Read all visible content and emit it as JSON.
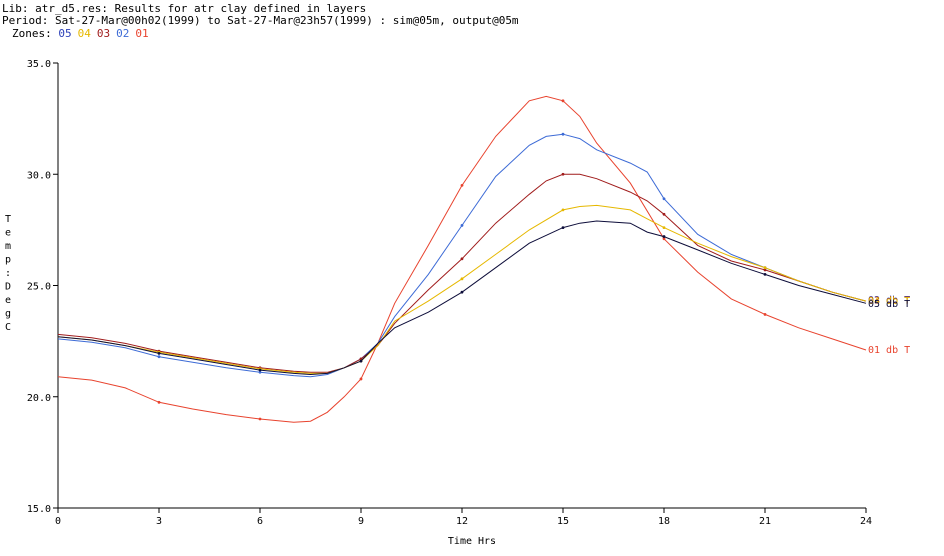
{
  "header": {
    "lib_line": "Lib: atr_d5.res: Results for atr clay defined in layers",
    "period_line": "Period: Sat-27-Mar@00h02(1999) to Sat-27-Mar@23h57(1999) : sim@05m, output@05m",
    "zones_label": "Zones:",
    "zones": [
      {
        "id": "05",
        "color": "#2b3fb8"
      },
      {
        "id": "04",
        "color": "#e6b800"
      },
      {
        "id": "03",
        "color": "#a01c1c"
      },
      {
        "id": "02",
        "color": "#3d6bd6"
      },
      {
        "id": "01",
        "color": "#e8432e"
      }
    ]
  },
  "chart_data": {
    "type": "line",
    "xlabel": "Time Hrs",
    "ylabel": "Temp: DegC",
    "xlim": [
      0,
      24
    ],
    "ylim": [
      15,
      35
    ],
    "x_ticks": [
      "0",
      "3",
      "6",
      "9",
      "12",
      "15",
      "18",
      "21",
      "24"
    ],
    "y_ticks": [
      "15.0",
      "20.0",
      "25.0",
      "30.0",
      "35.0"
    ],
    "grid": false,
    "series": [
      {
        "name": "01 db T",
        "color": "#e8432e",
        "x": [
          0,
          1,
          2,
          3,
          4,
          5,
          6,
          7,
          7.5,
          8,
          8.5,
          9,
          9.5,
          10,
          11,
          12,
          13,
          14,
          14.5,
          15,
          15.5,
          16,
          17,
          18,
          19,
          20,
          21,
          22,
          23,
          24
        ],
        "y": [
          20.9,
          20.75,
          20.4,
          19.75,
          19.45,
          19.2,
          19.0,
          18.85,
          18.9,
          19.3,
          20.0,
          20.8,
          22.4,
          24.2,
          26.8,
          29.5,
          31.7,
          33.3,
          33.5,
          33.3,
          32.6,
          31.4,
          29.6,
          27.1,
          25.6,
          24.4,
          23.7,
          23.1,
          22.6,
          22.1
        ]
      },
      {
        "name": "02 db T",
        "color": "#3d6bd6",
        "x": [
          0,
          1,
          2,
          3,
          4,
          5,
          6,
          7,
          7.5,
          8,
          8.5,
          9,
          9.5,
          10,
          11,
          12,
          13,
          14,
          14.5,
          15,
          15.5,
          16,
          17,
          17.5,
          18,
          19,
          20,
          21,
          22,
          23,
          24
        ],
        "y": [
          22.6,
          22.45,
          22.2,
          21.8,
          21.55,
          21.3,
          21.1,
          20.95,
          20.9,
          21.0,
          21.3,
          21.7,
          22.4,
          23.6,
          25.5,
          27.7,
          29.9,
          31.3,
          31.7,
          31.8,
          31.6,
          31.1,
          30.5,
          30.1,
          28.9,
          27.3,
          26.4,
          25.8,
          25.2,
          24.7,
          24.3
        ]
      },
      {
        "name": "03 db T",
        "color": "#a01c1c",
        "x": [
          0,
          1,
          2,
          3,
          4,
          5,
          6,
          7,
          7.5,
          8,
          8.5,
          9,
          9.5,
          10,
          11,
          12,
          13,
          14,
          14.5,
          15,
          15.5,
          16,
          17,
          17.5,
          18,
          19,
          20,
          21,
          22,
          23,
          24
        ],
        "y": [
          22.8,
          22.65,
          22.4,
          22.05,
          21.8,
          21.55,
          21.3,
          21.15,
          21.1,
          21.1,
          21.3,
          21.7,
          22.3,
          23.3,
          24.8,
          26.2,
          27.8,
          29.1,
          29.7,
          30.0,
          30.0,
          29.8,
          29.2,
          28.8,
          28.2,
          26.8,
          26.1,
          25.7,
          25.2,
          24.7,
          24.3
        ]
      },
      {
        "name": "04 db T",
        "color": "#e6b800",
        "x": [
          0,
          1,
          2,
          3,
          4,
          5,
          6,
          7,
          7.5,
          8,
          8.5,
          9,
          9.5,
          10,
          11,
          12,
          13,
          14,
          15,
          15.5,
          16,
          17,
          17.5,
          18,
          19,
          20,
          21,
          22,
          23,
          24
        ],
        "y": [
          22.7,
          22.55,
          22.3,
          22.0,
          21.75,
          21.5,
          21.25,
          21.1,
          21.05,
          21.05,
          21.3,
          21.6,
          22.3,
          23.4,
          24.3,
          25.3,
          26.4,
          27.5,
          28.4,
          28.55,
          28.6,
          28.4,
          28.0,
          27.6,
          26.9,
          26.3,
          25.8,
          25.2,
          24.7,
          24.3
        ]
      },
      {
        "name": "05 db T",
        "color": "#0d0d3a",
        "x": [
          0,
          1,
          2,
          3,
          4,
          5,
          6,
          7,
          7.5,
          8,
          8.5,
          9,
          9.5,
          10,
          11,
          12,
          13,
          14,
          15,
          15.5,
          16,
          17,
          17.5,
          18,
          19,
          20,
          21,
          22,
          23,
          24
        ],
        "y": [
          22.7,
          22.55,
          22.3,
          21.95,
          21.7,
          21.45,
          21.2,
          21.05,
          21.0,
          21.05,
          21.3,
          21.6,
          22.4,
          23.1,
          23.8,
          24.7,
          25.8,
          26.9,
          27.6,
          27.8,
          27.9,
          27.8,
          27.4,
          27.2,
          26.6,
          26.0,
          25.5,
          25.0,
          24.6,
          24.2
        ]
      }
    ],
    "end_labels": [
      "05 db T",
      "01 db T"
    ]
  }
}
